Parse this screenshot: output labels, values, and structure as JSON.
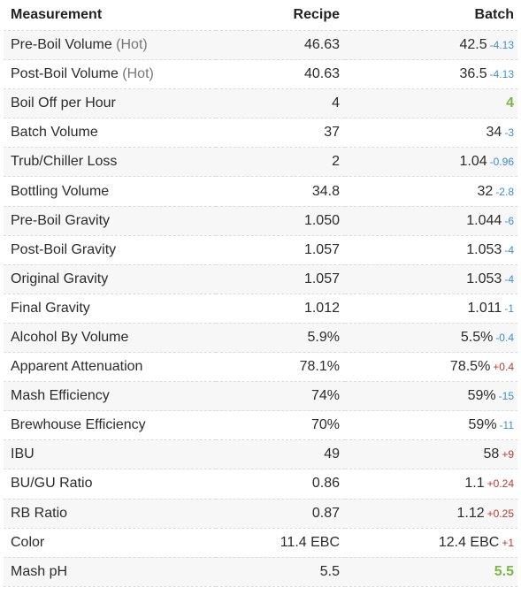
{
  "colors": {
    "diff_negative": "#3d8fd1",
    "diff_positive": "#c0392b",
    "match": "#7ab648",
    "row_stripe": "#f7f7f7"
  },
  "headers": {
    "measurement": "Measurement",
    "recipe": "Recipe",
    "batch": "Batch"
  },
  "rows": [
    {
      "label": "Pre-Boil Volume",
      "suffix": "(Hot)",
      "recipe": "46.63",
      "batch": "42.5",
      "diff": "-4.13",
      "diff_type": "neg"
    },
    {
      "label": "Post-Boil Volume",
      "suffix": "(Hot)",
      "recipe": "40.63",
      "batch": "36.5",
      "diff": "-4.13",
      "diff_type": "neg"
    },
    {
      "label": "Boil Off per Hour",
      "suffix": "",
      "recipe": "4",
      "batch": "4",
      "diff": "",
      "diff_type": "same"
    },
    {
      "label": "Batch Volume",
      "suffix": "",
      "recipe": "37",
      "batch": "34",
      "diff": "-3",
      "diff_type": "neg"
    },
    {
      "label": "Trub/Chiller Loss",
      "suffix": "",
      "recipe": "2",
      "batch": "1.04",
      "diff": "-0.96",
      "diff_type": "neg"
    },
    {
      "label": "Bottling Volume",
      "suffix": "",
      "recipe": "34.8",
      "batch": "32",
      "diff": "-2.8",
      "diff_type": "neg"
    },
    {
      "label": "Pre-Boil Gravity",
      "suffix": "",
      "recipe": "1.050",
      "batch": "1.044",
      "diff": "-6",
      "diff_type": "neg"
    },
    {
      "label": "Post-Boil Gravity",
      "suffix": "",
      "recipe": "1.057",
      "batch": "1.053",
      "diff": "-4",
      "diff_type": "neg"
    },
    {
      "label": "Original Gravity",
      "suffix": "",
      "recipe": "1.057",
      "batch": "1.053",
      "diff": "-4",
      "diff_type": "neg"
    },
    {
      "label": "Final Gravity",
      "suffix": "",
      "recipe": "1.012",
      "batch": "1.011",
      "diff": "-1",
      "diff_type": "neg"
    },
    {
      "label": "Alcohol By Volume",
      "suffix": "",
      "recipe": "5.9%",
      "batch": "5.5%",
      "diff": "-0.4",
      "diff_type": "neg"
    },
    {
      "label": "Apparent Attenuation",
      "suffix": "",
      "recipe": "78.1%",
      "batch": "78.5%",
      "diff": "+0.4",
      "diff_type": "pos"
    },
    {
      "label": "Mash Efficiency",
      "suffix": "",
      "recipe": "74%",
      "batch": "59%",
      "diff": "-15",
      "diff_type": "neg"
    },
    {
      "label": "Brewhouse Efficiency",
      "suffix": "",
      "recipe": "70%",
      "batch": "59%",
      "diff": "-11",
      "diff_type": "neg"
    },
    {
      "label": "IBU",
      "suffix": "",
      "recipe": "49",
      "batch": "58",
      "diff": "+9",
      "diff_type": "pos"
    },
    {
      "label": "BU/GU Ratio",
      "suffix": "",
      "recipe": "0.86",
      "batch": "1.1",
      "diff": "+0.24",
      "diff_type": "pos"
    },
    {
      "label": "RB Ratio",
      "suffix": "",
      "recipe": "0.87",
      "batch": "1.12",
      "diff": "+0.25",
      "diff_type": "pos"
    },
    {
      "label": "Color",
      "suffix": "",
      "recipe": "11.4 EBC",
      "batch": "12.4 EBC",
      "diff": "+1",
      "diff_type": "pos"
    },
    {
      "label": "Mash pH",
      "suffix": "",
      "recipe": "5.5",
      "batch": "5.5",
      "diff": "",
      "diff_type": "same"
    }
  ]
}
